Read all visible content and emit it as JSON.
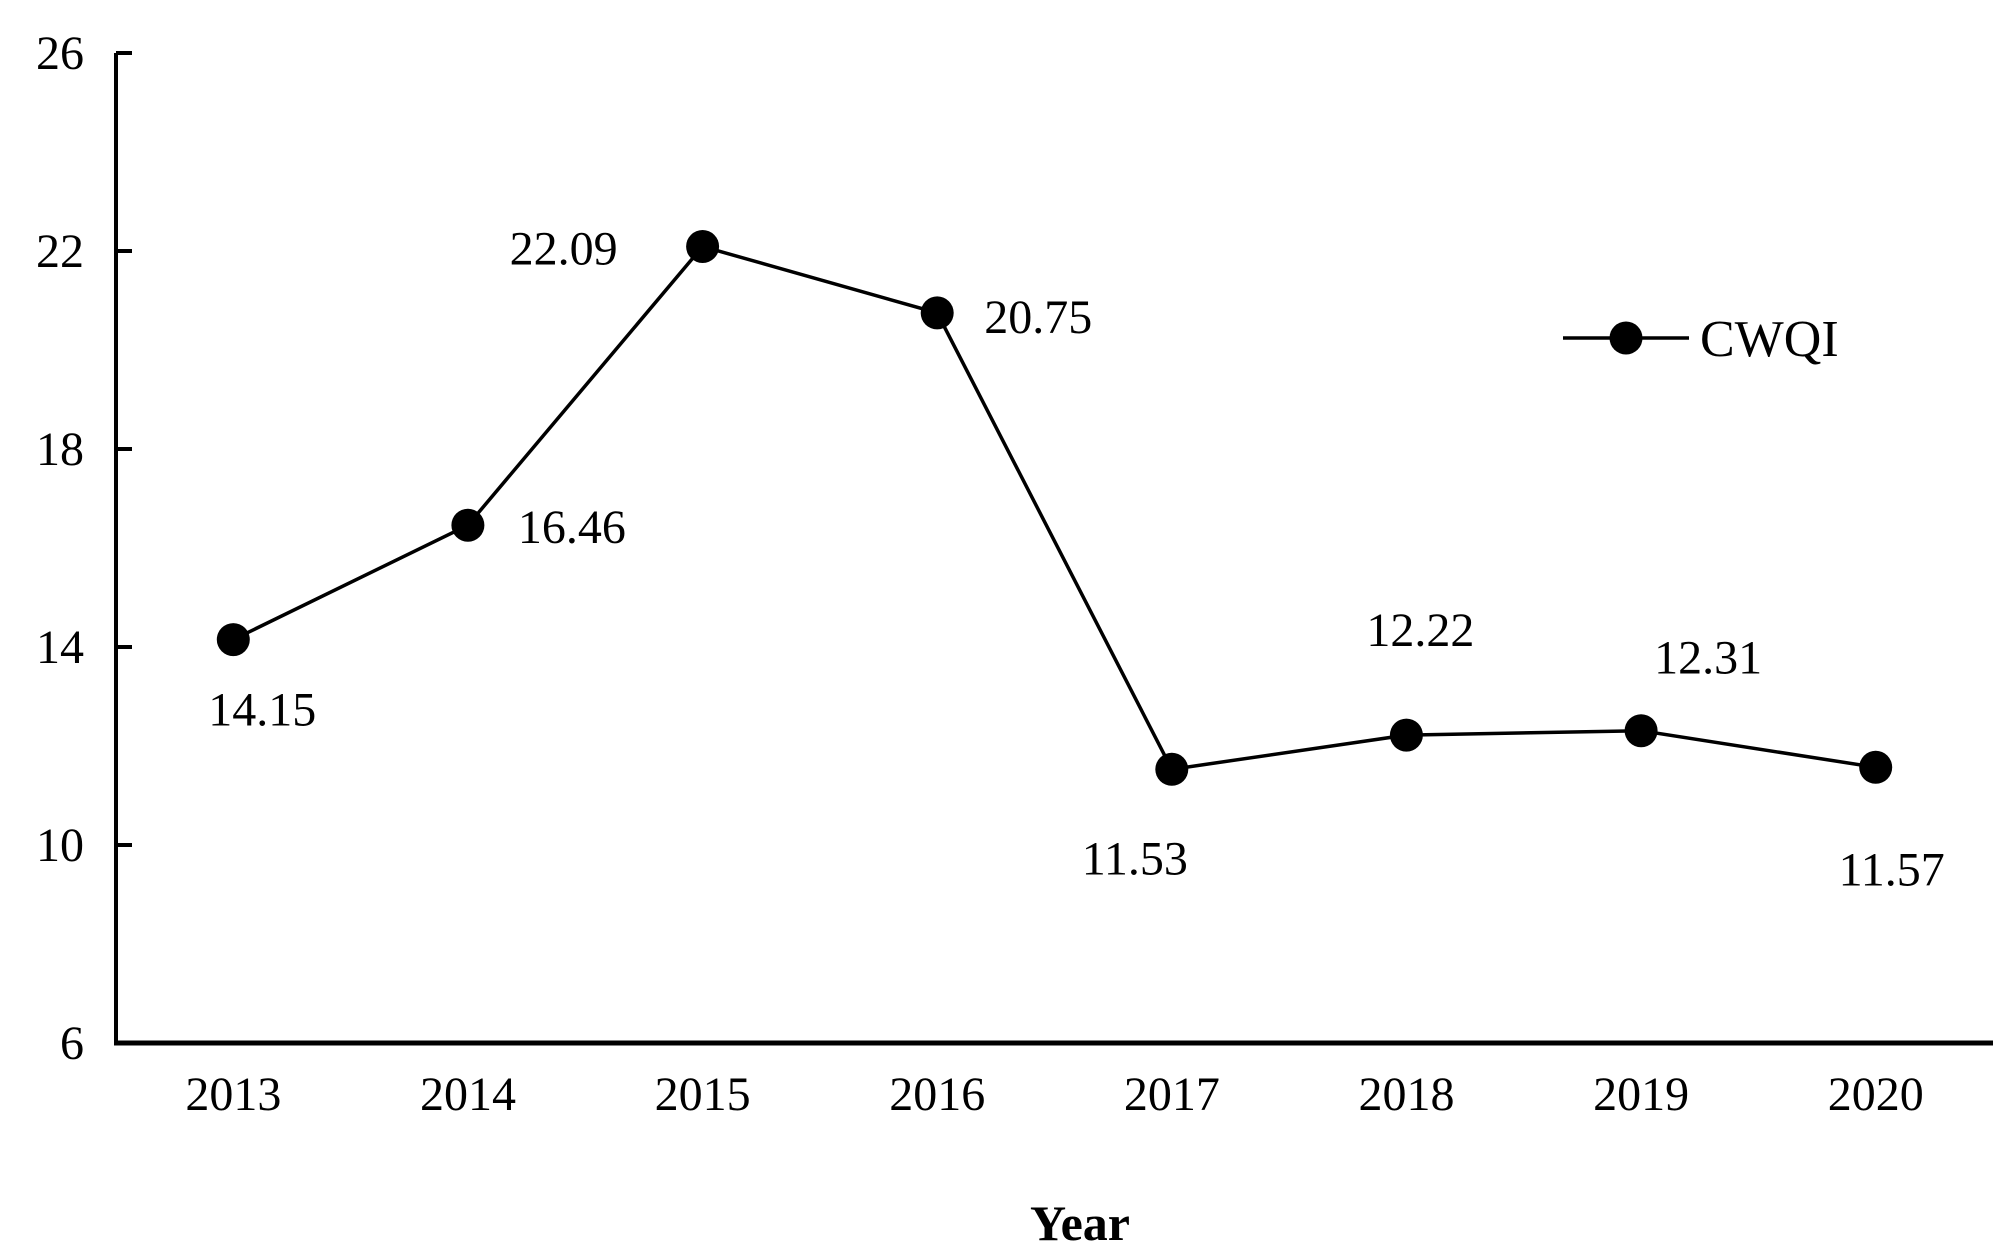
{
  "chart_data": {
    "type": "line",
    "title": "",
    "xlabel": "Year",
    "ylabel": "",
    "categories": [
      "2013",
      "2014",
      "2015",
      "2016",
      "2017",
      "2018",
      "2019",
      "2020"
    ],
    "series": [
      {
        "name": "CWQI",
        "values": [
          14.15,
          16.46,
          22.09,
          20.75,
          11.53,
          12.22,
          12.31,
          11.57
        ],
        "data_labels": [
          "14.15",
          "16.46",
          "22.09",
          "20.75",
          "11.53",
          "12.22",
          "12.31",
          "11.57"
        ],
        "marker": "filled-circle",
        "color": "#000000"
      }
    ],
    "ylim": [
      6,
      26
    ],
    "yticks": [
      6,
      10,
      14,
      18,
      22,
      26
    ],
    "ytick_labels": [
      "6",
      "10",
      "14",
      "18",
      "22",
      "26"
    ],
    "grid": false,
    "legend": {
      "label": "CWQI",
      "position": "top-right"
    },
    "colors": {
      "axis": "#000000",
      "line": "#000000",
      "marker": "#000000",
      "text": "#000000",
      "background": "#ffffff"
    }
  }
}
